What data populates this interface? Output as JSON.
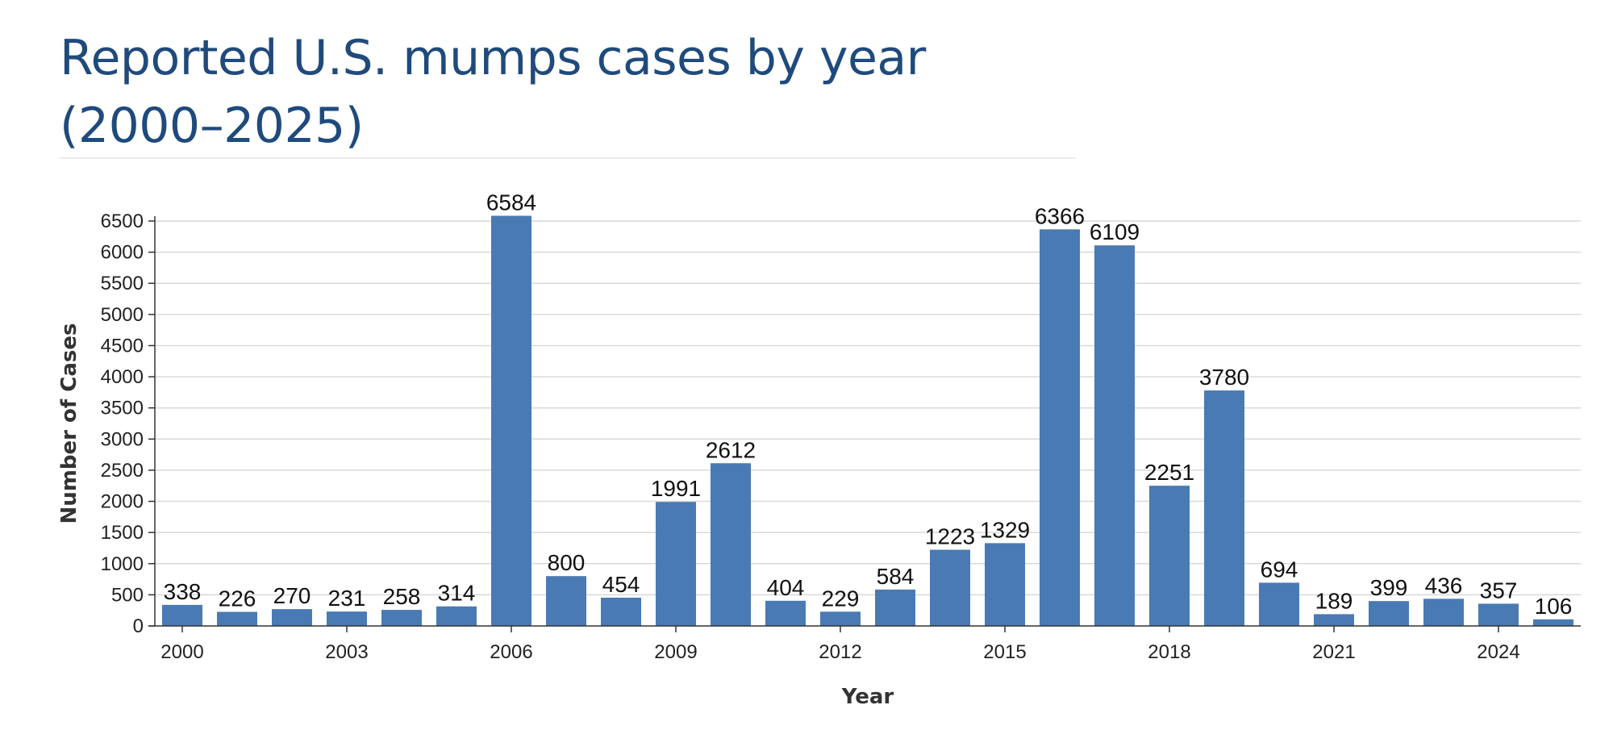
{
  "title": "Reported U.S. mumps cases by year (2000–2025)",
  "colors": {
    "bar": "#4a7ab3",
    "title": "#1f4a7c",
    "grid": "#d9d9d9",
    "axis": "#333333"
  },
  "chart_data": {
    "type": "bar",
    "title": "Reported U.S. mumps cases by year (2000–2025)",
    "xlabel": "Year",
    "ylabel": "Number of Cases",
    "categories": [
      "2000",
      "2001",
      "2002",
      "2003",
      "2004",
      "2005",
      "2006",
      "2007",
      "2008",
      "2009",
      "2010",
      "2011",
      "2012",
      "2013",
      "2014",
      "2015",
      "2016",
      "2017",
      "2018",
      "2019",
      "2020",
      "2021",
      "2022",
      "2023",
      "2024",
      "2025"
    ],
    "x_tick_labels": [
      "2000",
      "2003",
      "2006",
      "2009",
      "2012",
      "2015",
      "2018",
      "2021",
      "2024"
    ],
    "values": [
      338,
      226,
      270,
      231,
      258,
      314,
      6584,
      800,
      454,
      1991,
      2612,
      404,
      229,
      584,
      1223,
      1329,
      6366,
      6109,
      2251,
      3780,
      694,
      189,
      399,
      436,
      357,
      106
    ],
    "y_ticks": [
      0,
      500,
      1000,
      1500,
      2000,
      2500,
      3000,
      3500,
      4000,
      4500,
      5000,
      5500,
      6000,
      6500
    ],
    "ylim": [
      0,
      6500
    ],
    "grid": true,
    "data_labels": true,
    "legend": "none"
  }
}
